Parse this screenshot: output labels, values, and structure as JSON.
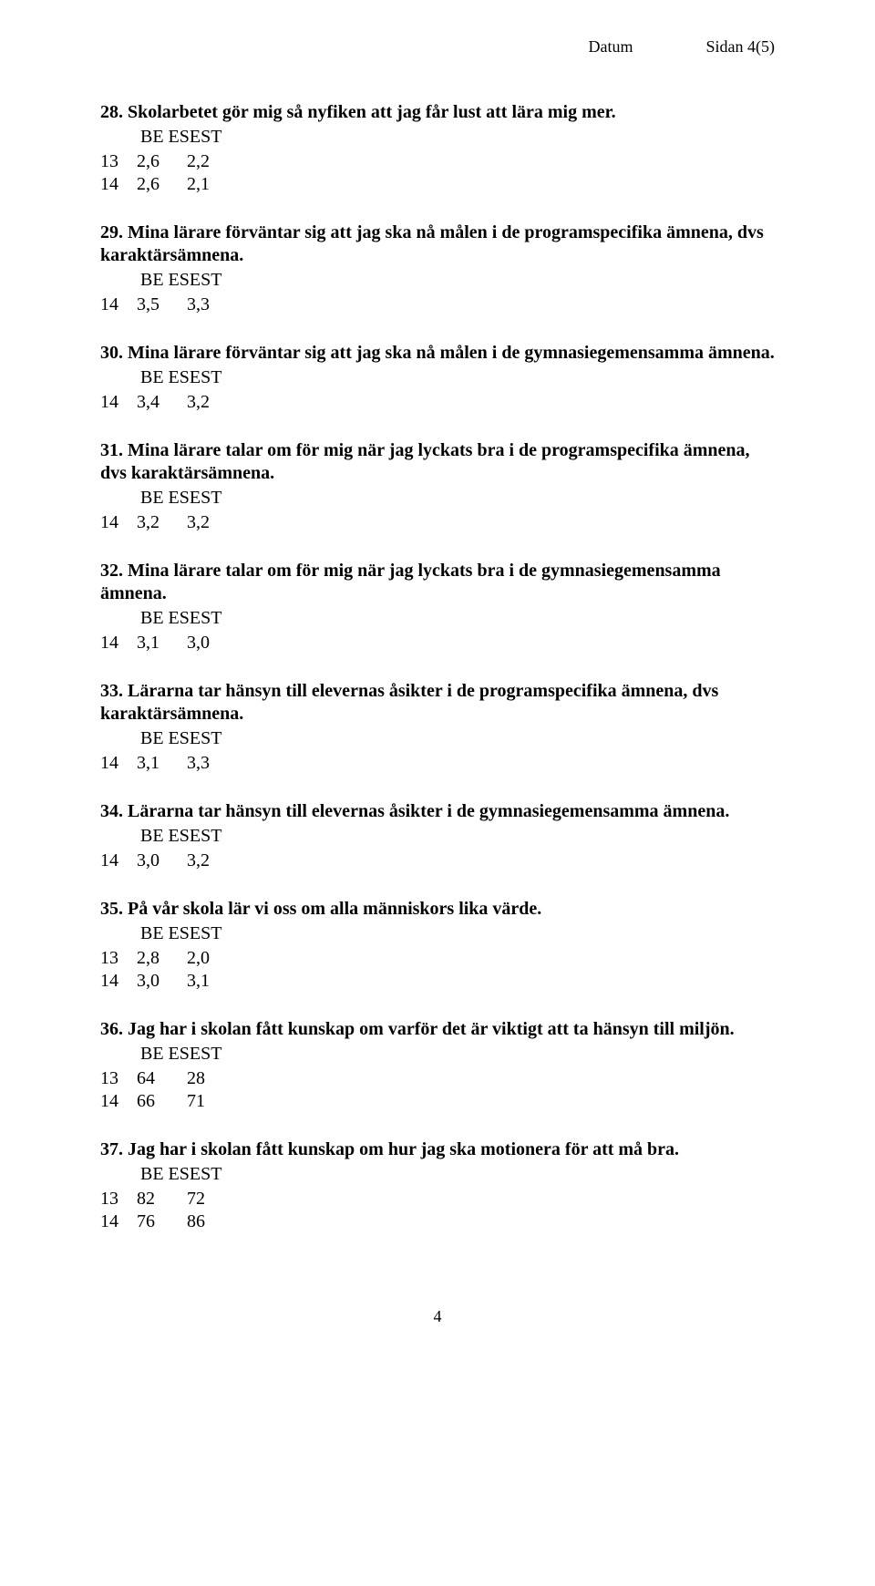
{
  "header": {
    "datum": "Datum",
    "sidan": "Sidan 4(5)"
  },
  "questions": [
    {
      "num": "28.",
      "title": "Skolarbetet gör mig så nyfiken att jag får lust att lära mig mer.",
      "sub": "BE  ESEST",
      "rows": [
        [
          "13",
          "2,6",
          "2,2"
        ],
        [
          "14",
          "2,6",
          "2,1"
        ]
      ]
    },
    {
      "num": "29.",
      "title": "Mina lärare förväntar sig att jag ska nå målen i de programspecifika ämnena, dvs karaktärsämnena.",
      "sub": "BE  ESEST",
      "rows": [
        [
          "14",
          "3,5",
          "3,3"
        ]
      ]
    },
    {
      "num": "30.",
      "title": "Mina lärare förväntar sig att jag ska nå målen i de gymnasiegemensamma ämnena.",
      "sub": "BE  ESEST",
      "rows": [
        [
          "14",
          "3,4",
          "3,2"
        ]
      ]
    },
    {
      "num": "31.",
      "title": "Mina lärare talar om för mig när jag lyckats bra i de programspecifika ämnena, dvs karaktärsämnena.",
      "sub": "BE  ESEST",
      "rows": [
        [
          "14",
          "3,2",
          "3,2"
        ]
      ]
    },
    {
      "num": "32.",
      "title": "Mina lärare talar om för mig när jag lyckats bra i de gymnasiegemensamma ämnena.",
      "sub": "BE  ESEST",
      "rows": [
        [
          "14",
          "3,1",
          "3,0"
        ]
      ]
    },
    {
      "num": "33.",
      "title": "Lärarna tar hänsyn till elevernas åsikter i de programspecifika ämnena, dvs karaktärsämnena.",
      "sub": "BE  ESEST",
      "rows": [
        [
          "14",
          "3,1",
          "3,3"
        ]
      ]
    },
    {
      "num": "34.",
      "title": "Lärarna tar hänsyn till elevernas åsikter i de gymnasiegemensamma ämnena.",
      "sub": "BE  ESEST",
      "rows": [
        [
          "14",
          "3,0",
          "3,2"
        ]
      ]
    },
    {
      "num": "35.",
      "title": "På vår skola lär vi oss om alla människors lika värde.",
      "sub": "BE  ESEST",
      "rows": [
        [
          "13",
          "2,8",
          "2,0"
        ],
        [
          "14",
          "3,0",
          "3,1"
        ]
      ]
    },
    {
      "num": "36.",
      "title": "Jag har i skolan fått kunskap om varför det är viktigt att ta hänsyn till miljön.",
      "sub": "BE  ESEST",
      "rows": [
        [
          "13",
          "64",
          "28"
        ],
        [
          "14",
          "66",
          "71"
        ]
      ]
    },
    {
      "num": "37.",
      "title": "Jag har i skolan fått kunskap om hur jag ska motionera för att må bra.",
      "sub": "BE  ESEST",
      "rows": [
        [
          "13",
          "82",
          "72"
        ],
        [
          "14",
          "76",
          "86"
        ]
      ]
    }
  ],
  "footer": {
    "page": "4"
  }
}
